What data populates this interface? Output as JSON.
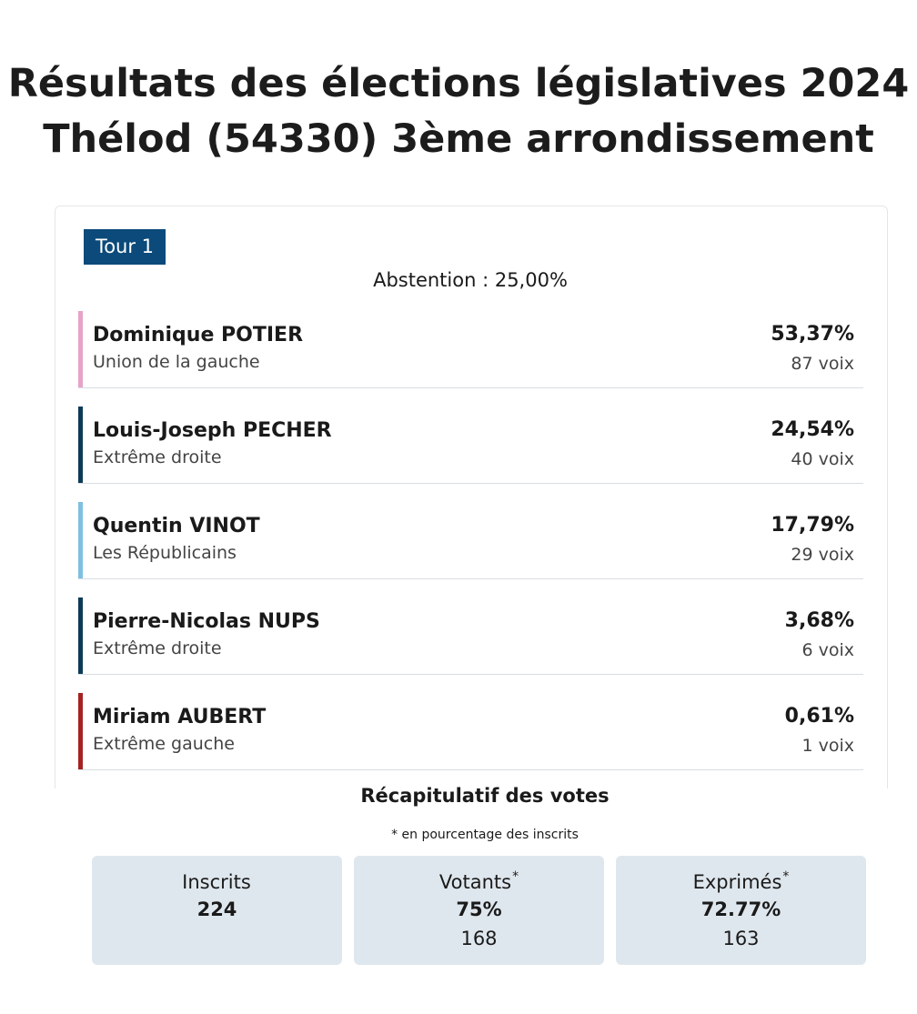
{
  "title": {
    "line1": "Résultats des élections législatives 2024",
    "line2": "Thélod (54330) 3ème arrondissement"
  },
  "tour": {
    "label": "Tour 1"
  },
  "abstention": "Abstention : 25,00%",
  "candidates": [
    {
      "name": "Dominique POTIER",
      "party": "Union de la gauche",
      "pct": "53,37%",
      "votes": "87 voix",
      "color": "#e8a3c9"
    },
    {
      "name": "Louis-Joseph PECHER",
      "party": "Extrême droite",
      "pct": "24,54%",
      "votes": "40 voix",
      "color": "#0d3b57"
    },
    {
      "name": "Quentin VINOT",
      "party": "Les Républicains",
      "pct": "17,79%",
      "votes": "29 voix",
      "color": "#7ec0df"
    },
    {
      "name": "Pierre-Nicolas NUPS",
      "party": "Extrême droite",
      "pct": "3,68%",
      "votes": "6 voix",
      "color": "#0d3b57"
    },
    {
      "name": "Miriam AUBERT",
      "party": "Extrême gauche",
      "pct": "0,61%",
      "votes": "1 voix",
      "color": "#a52222"
    }
  ],
  "recap": {
    "title": "Récapitulatif des votes",
    "note": "* en pourcentage des inscrits",
    "stats": [
      {
        "label": "Inscrits",
        "main": "224",
        "sub": "",
        "star": ""
      },
      {
        "label": "Votants",
        "main": "75%",
        "sub": "168",
        "star": "*"
      },
      {
        "label": "Exprimés",
        "main": "72.77%",
        "sub": "163",
        "star": "*"
      }
    ]
  },
  "colors": {
    "badge": "#0b4a7a",
    "stat_bg": "#dfe7ee"
  }
}
